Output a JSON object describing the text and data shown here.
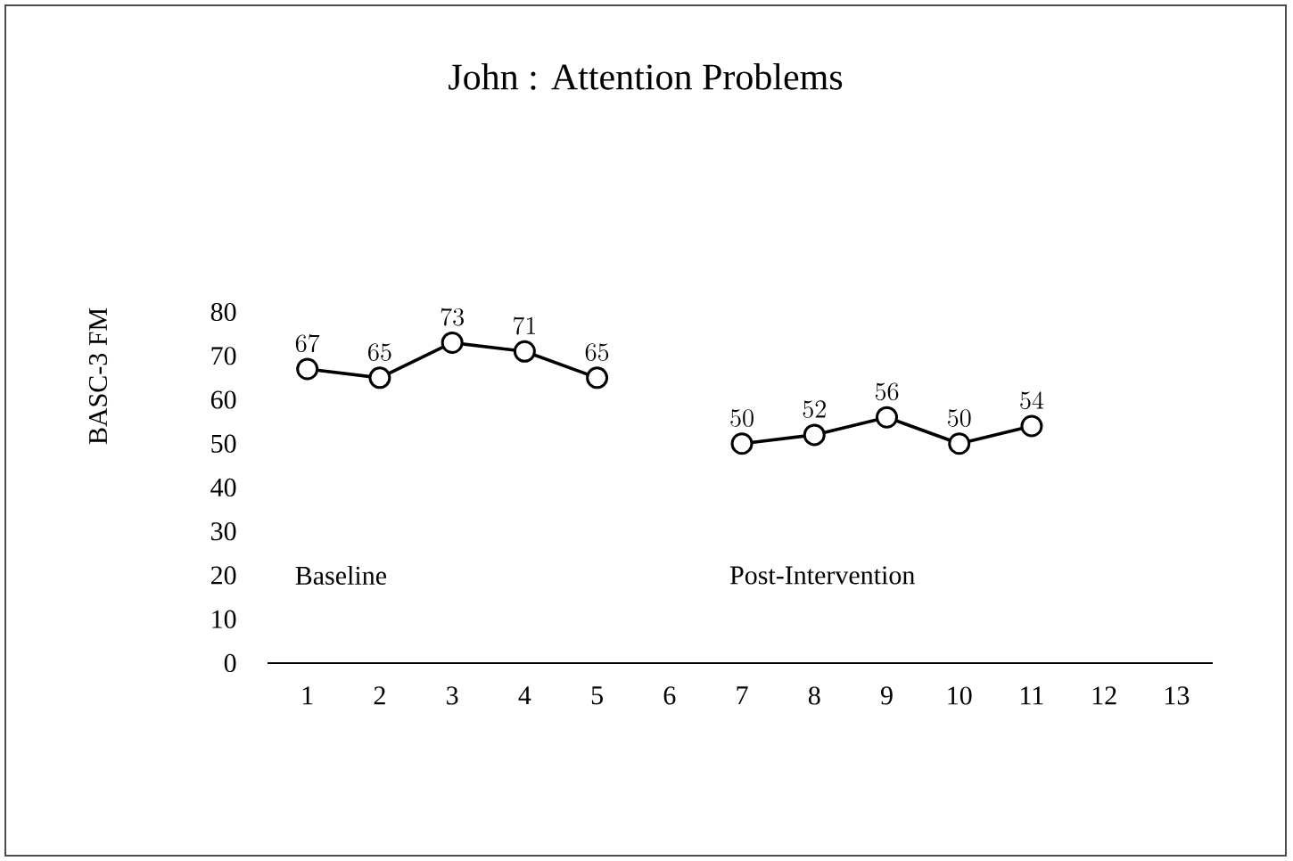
{
  "chart_data": {
    "type": "line",
    "title": "John : Attention Problems",
    "ylabel": "BASC-3 FM",
    "categories": [
      "1",
      "2",
      "3",
      "4",
      "5",
      "6",
      "7",
      "8",
      "9",
      "10",
      "11",
      "12",
      "13"
    ],
    "series": [
      {
        "color": "#000000",
        "values": [
          67,
          65,
          73,
          71,
          65,
          null,
          null,
          null,
          null,
          null,
          null,
          null,
          null
        ]
      },
      {
        "color": "#000000",
        "values": [
          null,
          null,
          null,
          null,
          null,
          null,
          50,
          52,
          56,
          50,
          54,
          null,
          null
        ]
      }
    ],
    "ylim": [
      0,
      80
    ],
    "yticks": [
      0,
      10,
      20,
      30,
      40,
      50,
      60,
      70,
      80
    ],
    "data_labels": true,
    "marker": "circle",
    "line_style": "solid",
    "grid": false,
    "legend": false,
    "annotations": [
      "Baseline",
      "Post-Intervention"
    ]
  }
}
